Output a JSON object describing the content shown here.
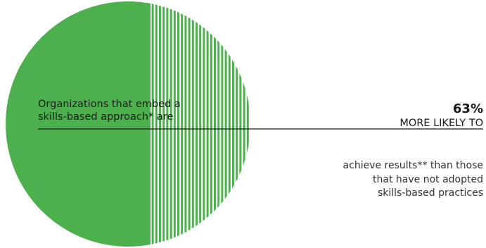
{
  "colors": {
    "accent": "#4cb14c",
    "line": "#1a1a1a"
  },
  "left_caption": [
    "Organizations that embed a",
    "skills-based approach* are"
  ],
  "stat": {
    "value": "63%",
    "label": "MORE LIKELY TO"
  },
  "description": [
    "achieve results** than those",
    "that have not adopted",
    "skills-based practices"
  ],
  "chart_data": {
    "type": "pie",
    "title": "",
    "slices": [
      {
        "label": "solid half",
        "value": 50,
        "fill": "solid"
      },
      {
        "label": "striped half",
        "value": 50,
        "fill": "striped"
      }
    ],
    "annotation_value": 63
  }
}
